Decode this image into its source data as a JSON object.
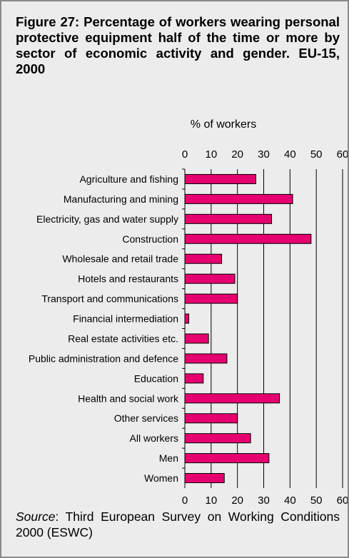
{
  "figure": {
    "title": "Figure 27: Percentage of workers wearing personal protective equipment half of the time or more by sector of economic activity and gender. EU-15, 2000",
    "source_label": "Source",
    "source_text": ": Third European Survey on Working Conditions 2000 (ESWC)"
  },
  "chart_data": {
    "type": "bar",
    "orientation": "horizontal",
    "title": "",
    "xlabel": "% of workers",
    "ylabel": "",
    "xlim": [
      0,
      60
    ],
    "xticks": [
      "0",
      "10",
      "20",
      "30",
      "40",
      "50",
      "60"
    ],
    "grid": true,
    "bar_color": "#e6006f",
    "categories": [
      "Agriculture and fishing",
      "Manufacturing and mining",
      "Electricity, gas and water supply",
      "Construction",
      "Wholesale and retail trade",
      "Hotels and restaurants",
      "Transport and communications",
      "Financial intermediation",
      "Real estate activities etc.",
      "Public administration and defence",
      "Education",
      "Health and social work",
      "Other services",
      "All workers",
      "Men",
      "Women"
    ],
    "values": [
      27,
      41,
      33,
      48,
      14,
      19,
      20,
      1.5,
      9,
      16,
      7,
      36,
      20,
      25,
      32,
      15
    ]
  }
}
